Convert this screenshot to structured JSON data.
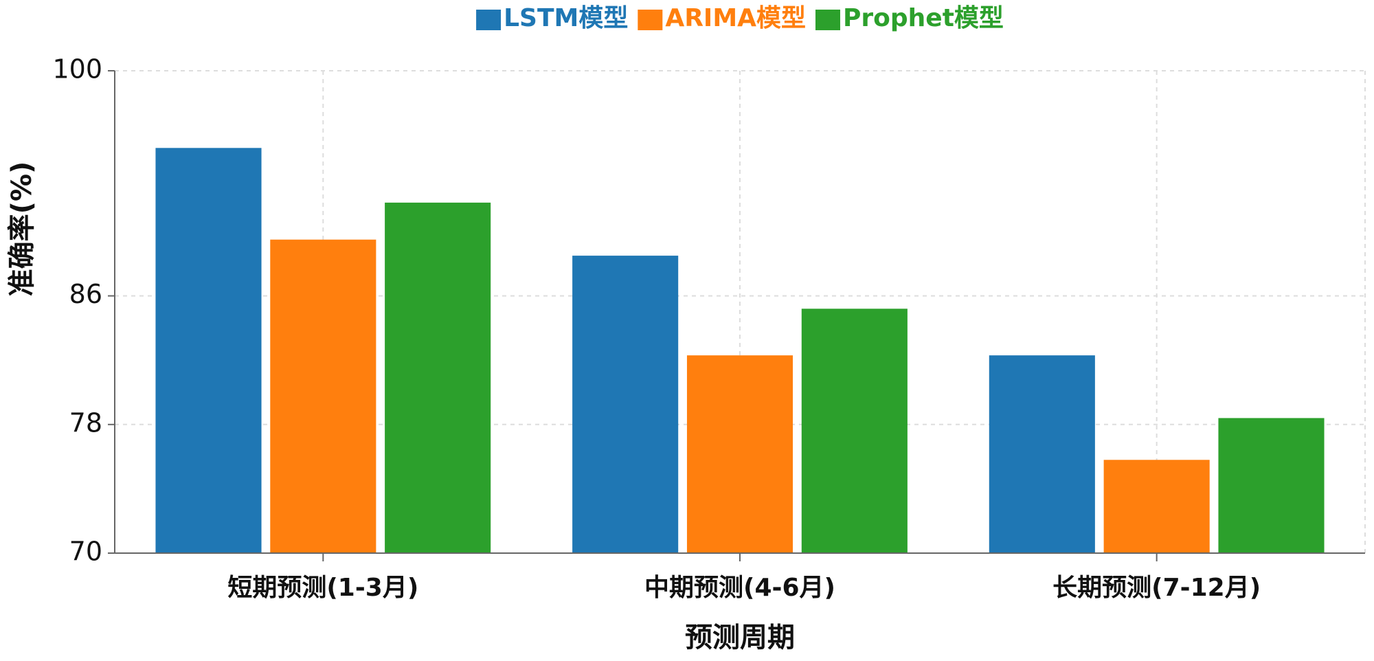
{
  "chart_data": {
    "type": "bar",
    "x_label": "预测周期",
    "y_label": "准确率(%)",
    "categories": [
      "短期预测(1-3月)",
      "中期预测(4-6月)",
      "长期预测(7-12月)"
    ],
    "series": [
      {
        "name": "LSTM模型",
        "color": "#1f77b4",
        "values": [
          95.2,
          88.5,
          82.3
        ]
      },
      {
        "name": "ARIMA模型",
        "color": "#ff7f0e",
        "values": [
          89.5,
          82.3,
          75.8
        ]
      },
      {
        "name": "Prophet模型",
        "color": "#2ca02c",
        "values": [
          91.8,
          85.2,
          78.4
        ]
      }
    ],
    "ylim": [
      70,
      100
    ],
    "yticks": [
      70,
      78,
      86,
      100
    ],
    "grid": true,
    "legend": "top"
  }
}
